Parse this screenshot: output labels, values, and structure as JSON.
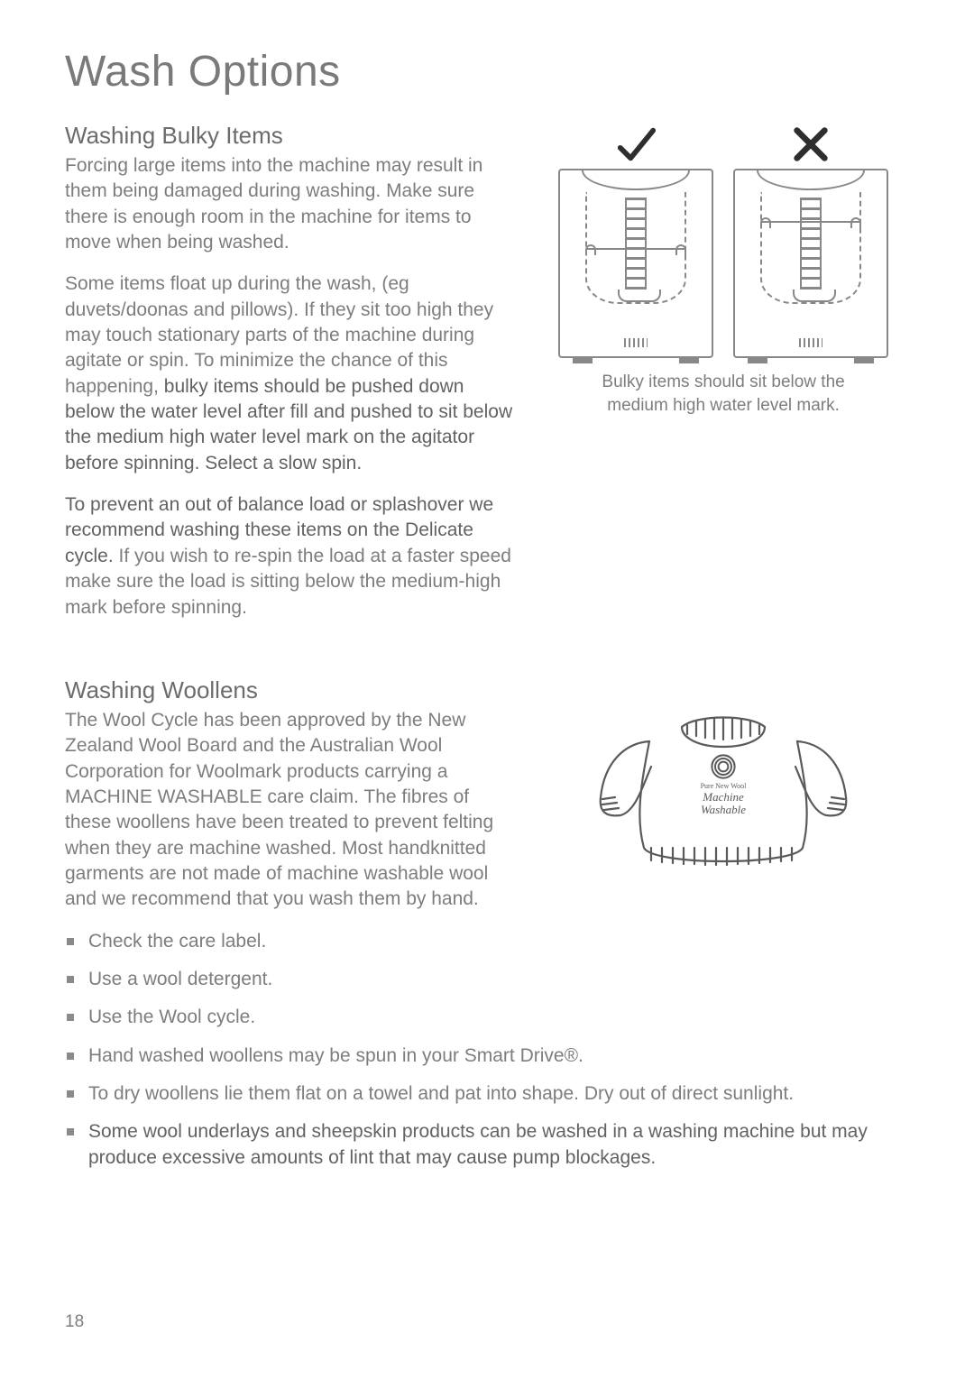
{
  "page": {
    "title": "Wash Options",
    "number": "18"
  },
  "colors": {
    "text": "#7d7d7d",
    "heading": "#6b6b6b",
    "strong": "#626262",
    "stroke": "#888888",
    "bg": "#ffffff"
  },
  "typography": {
    "h1_size_pt": 36,
    "h2_size_pt": 20,
    "body_size_pt": 16,
    "caption_size_pt": 14
  },
  "bulky": {
    "heading": "Washing Bulky Items",
    "p1": "Forcing large items into the machine may result in them being damaged during washing. Make sure there is enough room in the machine for items to move when being washed.",
    "p2_run1": "Some items float up during the wash, (eg duvets/doonas and pillows). If they sit too high they may touch stationary parts of the machine during agitate or spin. To minimize the chance of this happening, ",
    "p2_strong": "bulky items should be pushed down below the water level after fill and pushed to sit below the medium high water level mark on the agitator before spinning. Select a slow spin.",
    "p3_strong": "To prevent an out of balance load or splashover we recommend washing these items on the Delicate cycle.",
    "p3_run2": " If you wish to re-spin the load at a faster speed make sure the load is sitting below the medium-high mark before spinning.",
    "figure": {
      "type": "diagram",
      "caption": "Bulky items should sit below the medium high water level mark.",
      "panels": [
        {
          "mark": "check",
          "water_level": "below_medium_high"
        },
        {
          "mark": "cross",
          "water_level": "above_medium_high"
        }
      ],
      "stroke_color": "#888888",
      "mark_colors": {
        "check": "#2e2e2e",
        "cross": "#2e2e2e"
      }
    }
  },
  "wool": {
    "heading": "Washing Woollens",
    "p1": "The Wool Cycle has been approved by the New Zealand Wool Board and the Australian Wool Corporation for Woolmark products carrying a MACHINE WASHABLE care claim. The fibres of these woollens have been treated to prevent felting when they are machine washed. Most handknitted garments are not made of machine washable wool and we recommend that you wash them by hand.",
    "bullets": [
      {
        "text": "Check the care label.",
        "strong": false
      },
      {
        "text": "Use a wool detergent.",
        "strong": false
      },
      {
        "text": "Use the Wool cycle.",
        "strong": false
      },
      {
        "text": "Hand washed woollens may be spun in your Smart Drive®.",
        "strong": false
      },
      {
        "text": "To dry woollens lie them flat on a towel and pat into shape. Dry out of direct sunlight.",
        "strong": false
      },
      {
        "text": "Some wool underlays and sheepskin products can be washed in a washing machine but may produce excessive amounts of lint that may cause pump blockages.",
        "strong": true
      }
    ],
    "figure": {
      "type": "diagram",
      "label_line1": "Pure New Wool",
      "label_line2": "Machine",
      "label_line3": "Washable",
      "stroke_color": "#5a5a5a"
    }
  }
}
